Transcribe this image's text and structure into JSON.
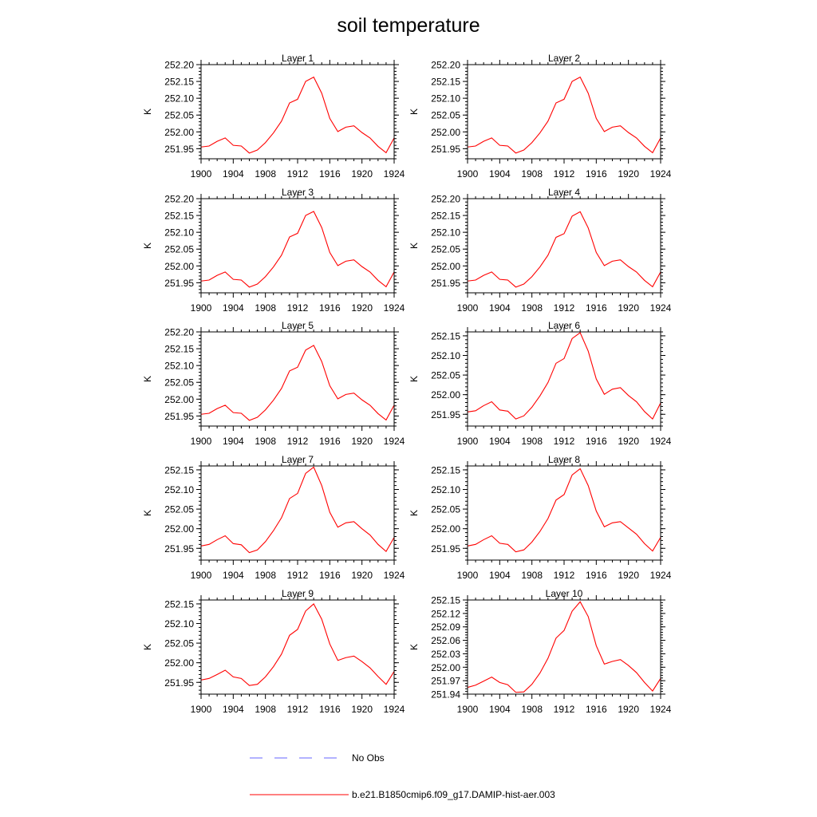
{
  "title": "soil temperature",
  "colors": {
    "model": "#ff0000",
    "obs": "#6666ff",
    "frame": "#000000"
  },
  "legend": {
    "obs_label": "No Obs",
    "model_label": "b.e21.B1850cmip6.f09_g17.DAMIP-hist-aer.003"
  },
  "chart_data": [
    {
      "type": "line",
      "title": "Layer 1",
      "xlabel": "",
      "ylabel": "K",
      "xlim": [
        1900,
        1924
      ],
      "ylim": [
        251.92,
        252.2
      ],
      "xticks": [
        "1900",
        "1904",
        "1908",
        "1912",
        "1916",
        "1920",
        "1924"
      ],
      "yticks": [
        "251.95",
        "252.00",
        "252.05",
        "252.10",
        "252.15",
        "252.20"
      ],
      "series": [
        {
          "name": "b.e21.B1850cmip6.f09_g17.DAMIP-hist-aer.003",
          "x": [
            1900,
            1901,
            1902,
            1903,
            1904,
            1905,
            1906,
            1907,
            1908,
            1909,
            1910,
            1911,
            1912,
            1913,
            1914,
            1915,
            1916,
            1917,
            1918,
            1919,
            1920,
            1921,
            1922,
            1923,
            1924
          ],
          "values": [
            251.955,
            251.958,
            251.972,
            251.982,
            251.96,
            251.958,
            251.937,
            251.946,
            251.968,
            251.997,
            252.032,
            252.086,
            252.097,
            252.15,
            252.163,
            252.115,
            252.04,
            252.001,
            252.014,
            252.018,
            251.998,
            251.982,
            251.957,
            251.938,
            251.982
          ]
        }
      ]
    },
    {
      "type": "line",
      "title": "Layer 2",
      "xlabel": "",
      "ylabel": "K",
      "xlim": [
        1900,
        1924
      ],
      "ylim": [
        251.92,
        252.2
      ],
      "xticks": [
        "1900",
        "1904",
        "1908",
        "1912",
        "1916",
        "1920",
        "1924"
      ],
      "yticks": [
        "251.95",
        "252.00",
        "252.05",
        "252.10",
        "252.15",
        "252.20"
      ],
      "series": [
        {
          "name": "b.e21.B1850cmip6.f09_g17.DAMIP-hist-aer.003",
          "x": [
            1900,
            1901,
            1902,
            1903,
            1904,
            1905,
            1906,
            1907,
            1908,
            1909,
            1910,
            1911,
            1912,
            1913,
            1914,
            1915,
            1916,
            1917,
            1918,
            1919,
            1920,
            1921,
            1922,
            1923,
            1924
          ],
          "values": [
            251.955,
            251.958,
            251.972,
            251.982,
            251.96,
            251.958,
            251.937,
            251.946,
            251.968,
            251.997,
            252.032,
            252.086,
            252.097,
            252.15,
            252.163,
            252.115,
            252.04,
            252.001,
            252.014,
            252.018,
            251.998,
            251.982,
            251.957,
            251.938,
            251.982
          ]
        }
      ]
    },
    {
      "type": "line",
      "title": "Layer 3",
      "xlabel": "",
      "ylabel": "K",
      "xlim": [
        1900,
        1924
      ],
      "ylim": [
        251.92,
        252.2
      ],
      "xticks": [
        "1900",
        "1904",
        "1908",
        "1912",
        "1916",
        "1920",
        "1924"
      ],
      "yticks": [
        "251.95",
        "252.00",
        "252.05",
        "252.10",
        "252.15",
        "252.20"
      ],
      "series": [
        {
          "name": "b.e21.B1850cmip6.f09_g17.DAMIP-hist-aer.003",
          "x": [
            1900,
            1901,
            1902,
            1903,
            1904,
            1905,
            1906,
            1907,
            1908,
            1909,
            1910,
            1911,
            1912,
            1913,
            1914,
            1915,
            1916,
            1917,
            1918,
            1919,
            1920,
            1921,
            1922,
            1923,
            1924
          ],
          "values": [
            251.955,
            251.958,
            251.972,
            251.982,
            251.96,
            251.958,
            251.937,
            251.946,
            251.968,
            251.997,
            252.032,
            252.086,
            252.097,
            252.15,
            252.162,
            252.114,
            252.04,
            252.001,
            252.014,
            252.018,
            251.998,
            251.982,
            251.957,
            251.938,
            251.982
          ]
        }
      ]
    },
    {
      "type": "line",
      "title": "Layer 4",
      "xlabel": "",
      "ylabel": "K",
      "xlim": [
        1900,
        1924
      ],
      "ylim": [
        251.92,
        252.2
      ],
      "xticks": [
        "1900",
        "1904",
        "1908",
        "1912",
        "1916",
        "1920",
        "1924"
      ],
      "yticks": [
        "251.95",
        "252.00",
        "252.05",
        "252.10",
        "252.15",
        "252.20"
      ],
      "series": [
        {
          "name": "b.e21.B1850cmip6.f09_g17.DAMIP-hist-aer.003",
          "x": [
            1900,
            1901,
            1902,
            1903,
            1904,
            1905,
            1906,
            1907,
            1908,
            1909,
            1910,
            1911,
            1912,
            1913,
            1914,
            1915,
            1916,
            1917,
            1918,
            1919,
            1920,
            1921,
            1922,
            1923,
            1924
          ],
          "values": [
            251.955,
            251.958,
            251.972,
            251.982,
            251.96,
            251.958,
            251.937,
            251.946,
            251.968,
            251.997,
            252.032,
            252.085,
            252.096,
            252.148,
            252.161,
            252.113,
            252.04,
            252.001,
            252.014,
            252.018,
            251.998,
            251.982,
            251.957,
            251.938,
            251.982
          ]
        }
      ]
    },
    {
      "type": "line",
      "title": "Layer 5",
      "xlabel": "",
      "ylabel": "K",
      "xlim": [
        1900,
        1924
      ],
      "ylim": [
        251.92,
        252.2
      ],
      "xticks": [
        "1900",
        "1904",
        "1908",
        "1912",
        "1916",
        "1920",
        "1924"
      ],
      "yticks": [
        "251.95",
        "252.00",
        "252.05",
        "252.10",
        "252.15",
        "252.20"
      ],
      "series": [
        {
          "name": "b.e21.B1850cmip6.f09_g17.DAMIP-hist-aer.003",
          "x": [
            1900,
            1901,
            1902,
            1903,
            1904,
            1905,
            1906,
            1907,
            1908,
            1909,
            1910,
            1911,
            1912,
            1913,
            1914,
            1915,
            1916,
            1917,
            1918,
            1919,
            1920,
            1921,
            1922,
            1923,
            1924
          ],
          "values": [
            251.955,
            251.958,
            251.972,
            251.982,
            251.96,
            251.958,
            251.937,
            251.946,
            251.968,
            251.997,
            252.032,
            252.084,
            252.095,
            252.146,
            252.16,
            252.112,
            252.04,
            252.001,
            252.014,
            252.018,
            251.998,
            251.982,
            251.957,
            251.938,
            251.982
          ]
        }
      ]
    },
    {
      "type": "line",
      "title": "Layer 6",
      "xlabel": "",
      "ylabel": "K",
      "xlim": [
        1900,
        1924
      ],
      "ylim": [
        251.92,
        252.16
      ],
      "xticks": [
        "1900",
        "1904",
        "1908",
        "1912",
        "1916",
        "1920",
        "1924"
      ],
      "yticks": [
        "251.95",
        "252.00",
        "252.05",
        "252.10",
        "252.15"
      ],
      "series": [
        {
          "name": "b.e21.B1850cmip6.f09_g17.DAMIP-hist-aer.003",
          "x": [
            1900,
            1901,
            1902,
            1903,
            1904,
            1905,
            1906,
            1907,
            1908,
            1909,
            1910,
            1911,
            1912,
            1913,
            1914,
            1915,
            1916,
            1917,
            1918,
            1919,
            1920,
            1921,
            1922,
            1923,
            1924
          ],
          "values": [
            251.956,
            251.959,
            251.972,
            251.982,
            251.961,
            251.958,
            251.938,
            251.946,
            251.968,
            251.997,
            252.031,
            252.08,
            252.092,
            252.143,
            252.158,
            252.111,
            252.04,
            252.001,
            252.014,
            252.018,
            251.998,
            251.982,
            251.957,
            251.938,
            251.979
          ]
        }
      ]
    },
    {
      "type": "line",
      "title": "Layer 7",
      "xlabel": "",
      "ylabel": "K",
      "xlim": [
        1900,
        1924
      ],
      "ylim": [
        251.92,
        252.16
      ],
      "xticks": [
        "1900",
        "1904",
        "1908",
        "1912",
        "1916",
        "1920",
        "1924"
      ],
      "yticks": [
        "251.95",
        "252.00",
        "252.05",
        "252.10",
        "252.15"
      ],
      "series": [
        {
          "name": "b.e21.B1850cmip6.f09_g17.DAMIP-hist-aer.003",
          "x": [
            1900,
            1901,
            1902,
            1903,
            1904,
            1905,
            1906,
            1907,
            1908,
            1909,
            1910,
            1911,
            1912,
            1913,
            1914,
            1915,
            1916,
            1917,
            1918,
            1919,
            1920,
            1921,
            1922,
            1923,
            1924
          ],
          "values": [
            251.956,
            251.96,
            251.972,
            251.982,
            251.962,
            251.959,
            251.939,
            251.946,
            251.967,
            251.995,
            252.028,
            252.077,
            252.09,
            252.141,
            252.157,
            252.11,
            252.042,
            252.004,
            252.015,
            252.018,
            252.0,
            251.984,
            251.96,
            251.942,
            251.978
          ]
        }
      ]
    },
    {
      "type": "line",
      "title": "Layer 8",
      "xlabel": "",
      "ylabel": "K",
      "xlim": [
        1900,
        1924
      ],
      "ylim": [
        251.92,
        252.16
      ],
      "xticks": [
        "1900",
        "1904",
        "1908",
        "1912",
        "1916",
        "1920",
        "1924"
      ],
      "yticks": [
        "251.95",
        "252.00",
        "252.05",
        "252.10",
        "252.15"
      ],
      "series": [
        {
          "name": "b.e21.B1850cmip6.f09_g17.DAMIP-hist-aer.003",
          "x": [
            1900,
            1901,
            1902,
            1903,
            1904,
            1905,
            1906,
            1907,
            1908,
            1909,
            1910,
            1911,
            1912,
            1913,
            1914,
            1915,
            1916,
            1917,
            1918,
            1919,
            1920,
            1921,
            1922,
            1923,
            1924
          ],
          "values": [
            251.956,
            251.96,
            251.972,
            251.982,
            251.963,
            251.96,
            251.941,
            251.946,
            251.966,
            251.993,
            252.026,
            252.073,
            252.087,
            252.137,
            252.153,
            252.11,
            252.045,
            252.005,
            252.015,
            252.018,
            252.002,
            251.986,
            251.962,
            251.943,
            251.978
          ]
        }
      ]
    },
    {
      "type": "line",
      "title": "Layer 9",
      "xlabel": "",
      "ylabel": "K",
      "xlim": [
        1900,
        1924
      ],
      "ylim": [
        251.92,
        252.16
      ],
      "xticks": [
        "1900",
        "1904",
        "1908",
        "1912",
        "1916",
        "1920",
        "1924"
      ],
      "yticks": [
        "251.95",
        "252.00",
        "252.05",
        "252.10",
        "252.15"
      ],
      "series": [
        {
          "name": "b.e21.B1850cmip6.f09_g17.DAMIP-hist-aer.003",
          "x": [
            1900,
            1901,
            1902,
            1903,
            1904,
            1905,
            1906,
            1907,
            1908,
            1909,
            1910,
            1911,
            1912,
            1913,
            1914,
            1915,
            1916,
            1917,
            1918,
            1919,
            1920,
            1921,
            1922,
            1923,
            1924
          ],
          "values": [
            251.956,
            251.96,
            251.97,
            251.981,
            251.964,
            251.96,
            251.942,
            251.945,
            251.964,
            251.99,
            252.022,
            252.07,
            252.085,
            252.132,
            252.15,
            252.111,
            252.048,
            252.006,
            252.013,
            252.017,
            252.003,
            251.987,
            251.965,
            251.945,
            251.978
          ]
        }
      ]
    },
    {
      "type": "line",
      "title": "Layer 10",
      "xlabel": "",
      "ylabel": "K",
      "xlim": [
        1900,
        1924
      ],
      "ylim": [
        251.94,
        252.15
      ],
      "xticks": [
        "1900",
        "1904",
        "1908",
        "1912",
        "1916",
        "1920",
        "1924"
      ],
      "yticks": [
        "251.94",
        "251.97",
        "252.00",
        "252.03",
        "252.06",
        "252.09",
        "252.12",
        "252.15"
      ],
      "series": [
        {
          "name": "b.e21.B1850cmip6.f09_g17.DAMIP-hist-aer.003",
          "x": [
            1900,
            1901,
            1902,
            1903,
            1904,
            1905,
            1906,
            1907,
            1908,
            1909,
            1910,
            1911,
            1912,
            1913,
            1914,
            1915,
            1916,
            1917,
            1918,
            1919,
            1920,
            1921,
            1922,
            1923,
            1924
          ],
          "values": [
            251.955,
            251.96,
            251.969,
            251.978,
            251.966,
            251.961,
            251.944,
            251.945,
            251.962,
            251.987,
            252.02,
            252.065,
            252.082,
            252.125,
            252.146,
            252.113,
            252.048,
            252.007,
            252.013,
            252.017,
            252.004,
            251.988,
            251.966,
            251.947,
            251.975
          ]
        }
      ]
    }
  ]
}
